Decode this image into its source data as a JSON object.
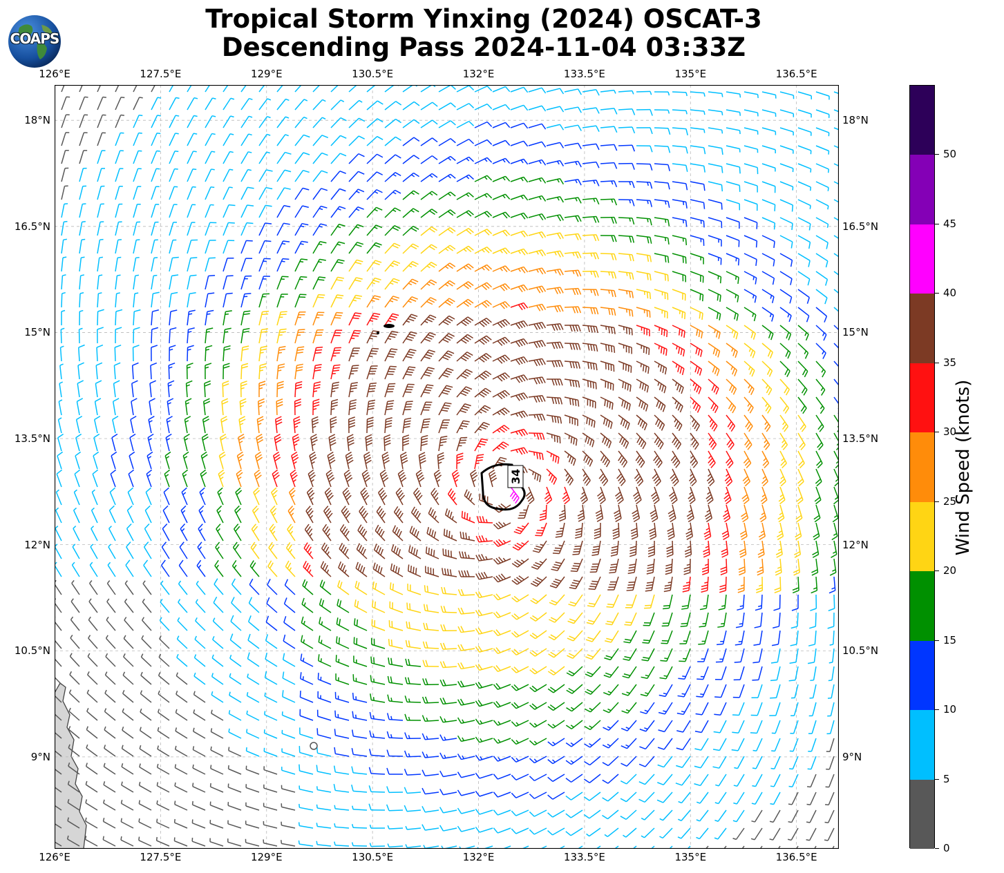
{
  "title": {
    "line1": "Tropical Storm Yinxing (2024) OSCAT-3",
    "line2": "Descending Pass 2024-11-04 03:33Z"
  },
  "logo": {
    "text": "COAPS"
  },
  "map": {
    "lon_range": [
      126,
      137.1
    ],
    "lat_range": [
      7.7,
      18.5
    ],
    "lon_ticks": [
      "126°E",
      "127.5°E",
      "129°E",
      "130.5°E",
      "132°E",
      "133.5°E",
      "135°E",
      "136.5°E"
    ],
    "lat_ticks": [
      "18°N",
      "16.5°N",
      "15°N",
      "13.5°N",
      "12°N",
      "10.5°N",
      "9°N"
    ],
    "lon_values": [
      126,
      127.5,
      129,
      130.5,
      132,
      133.5,
      135,
      136.5
    ],
    "lat_values": [
      18,
      16.5,
      15,
      13.5,
      12,
      10.5,
      9
    ],
    "gridlines": true,
    "storm_center": {
      "lon": 132.4,
      "lat": 12.8
    },
    "contour_label": "34",
    "colors": {
      "land": "#d6d6d6",
      "coast": "#444444",
      "grid": "#b8b8b8"
    }
  },
  "colorbar": {
    "label": "Wind Speed (knots)",
    "ticks": [
      "0",
      "5",
      "10",
      "15",
      "20",
      "25",
      "30",
      "35",
      "40",
      "45",
      "50"
    ],
    "bounds": [
      0,
      5,
      10,
      15,
      20,
      25,
      30,
      35,
      40,
      45,
      50,
      55
    ],
    "colors": [
      "#585858",
      "#00bfff",
      "#0036ff",
      "#009000",
      "#ffd514",
      "#ff8c0a",
      "#ff1111",
      "#7c3a24",
      "#ff00ff",
      "#8400b6",
      "#2d0059"
    ]
  }
}
